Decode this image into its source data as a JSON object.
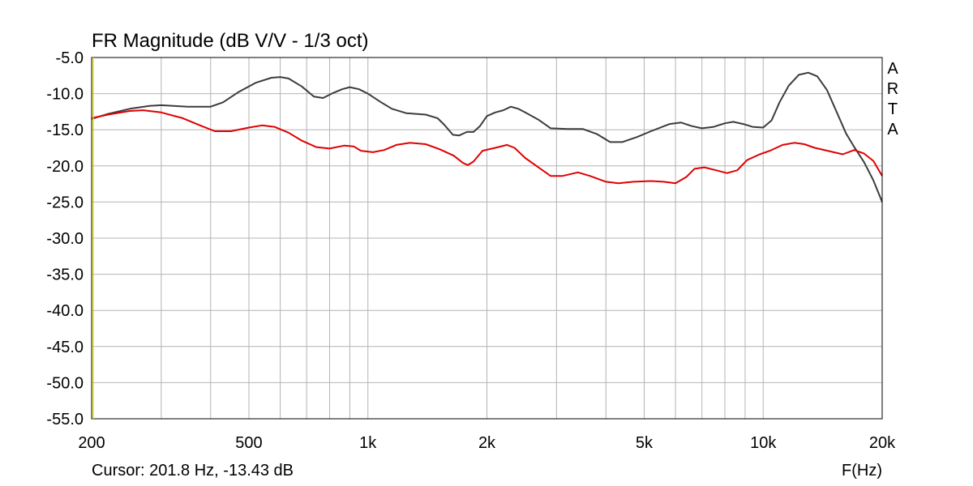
{
  "chart_data": {
    "type": "line",
    "title": "FR Magnitude (dB V/V - 1/3 oct)",
    "xlabel": "F(Hz)",
    "xscale": "log",
    "xlim": [
      200,
      20000
    ],
    "ylim": [
      -55,
      -5
    ],
    "xticks": [
      {
        "value": 200,
        "label": "200"
      },
      {
        "value": 500,
        "label": "500"
      },
      {
        "value": 1000,
        "label": "1k"
      },
      {
        "value": 2000,
        "label": "2k"
      },
      {
        "value": 5000,
        "label": "5k"
      },
      {
        "value": 10000,
        "label": "10k"
      },
      {
        "value": 20000,
        "label": "20k"
      }
    ],
    "yticks": [
      {
        "value": -5,
        "label": "-5.0"
      },
      {
        "value": -10,
        "label": "-10.0"
      },
      {
        "value": -15,
        "label": "-15.0"
      },
      {
        "value": -20,
        "label": "-20.0"
      },
      {
        "value": -25,
        "label": "-25.0"
      },
      {
        "value": -30,
        "label": "-30.0"
      },
      {
        "value": -35,
        "label": "-35.0"
      },
      {
        "value": -40,
        "label": "-40.0"
      },
      {
        "value": -45,
        "label": "-45.0"
      },
      {
        "value": -50,
        "label": "-50.0"
      },
      {
        "value": -55,
        "label": "-55.0"
      }
    ],
    "grid": true,
    "cursor_text": "Cursor: 201.8 Hz, -13.43 dB",
    "cursor_freq": 201.8,
    "side_label": [
      "A",
      "R",
      "T",
      "A"
    ],
    "cursor_color": "#e0e000",
    "grid_color": "#b4b4b4",
    "series": [
      {
        "color": "#3c3c3c",
        "points": [
          [
            200,
            -13.5
          ],
          [
            220,
            -12.8
          ],
          [
            250,
            -12.1
          ],
          [
            280,
            -11.7
          ],
          [
            300,
            -11.6
          ],
          [
            350,
            -11.8
          ],
          [
            400,
            -11.8
          ],
          [
            430,
            -11.2
          ],
          [
            470,
            -9.8
          ],
          [
            520,
            -8.5
          ],
          [
            570,
            -7.8
          ],
          [
            600,
            -7.7
          ],
          [
            630,
            -7.9
          ],
          [
            680,
            -9.0
          ],
          [
            730,
            -10.4
          ],
          [
            770,
            -10.6
          ],
          [
            810,
            -10.0
          ],
          [
            860,
            -9.4
          ],
          [
            900,
            -9.1
          ],
          [
            950,
            -9.4
          ],
          [
            1000,
            -10.0
          ],
          [
            1080,
            -11.2
          ],
          [
            1150,
            -12.1
          ],
          [
            1250,
            -12.7
          ],
          [
            1400,
            -12.9
          ],
          [
            1500,
            -13.4
          ],
          [
            1560,
            -14.3
          ],
          [
            1640,
            -15.7
          ],
          [
            1700,
            -15.8
          ],
          [
            1780,
            -15.3
          ],
          [
            1850,
            -15.3
          ],
          [
            1920,
            -14.5
          ],
          [
            2000,
            -13.1
          ],
          [
            2100,
            -12.6
          ],
          [
            2200,
            -12.3
          ],
          [
            2300,
            -11.8
          ],
          [
            2400,
            -12.1
          ],
          [
            2500,
            -12.6
          ],
          [
            2700,
            -13.6
          ],
          [
            2900,
            -14.8
          ],
          [
            3200,
            -14.9
          ],
          [
            3500,
            -14.9
          ],
          [
            3800,
            -15.6
          ],
          [
            4100,
            -16.7
          ],
          [
            4400,
            -16.7
          ],
          [
            4800,
            -16.0
          ],
          [
            5200,
            -15.2
          ],
          [
            5800,
            -14.2
          ],
          [
            6200,
            -14.0
          ],
          [
            6600,
            -14.5
          ],
          [
            7000,
            -14.8
          ],
          [
            7500,
            -14.6
          ],
          [
            8000,
            -14.1
          ],
          [
            8400,
            -13.9
          ],
          [
            8900,
            -14.2
          ],
          [
            9400,
            -14.6
          ],
          [
            10000,
            -14.7
          ],
          [
            10500,
            -13.7
          ],
          [
            11000,
            -11.2
          ],
          [
            11600,
            -8.9
          ],
          [
            12300,
            -7.4
          ],
          [
            13000,
            -7.1
          ],
          [
            13700,
            -7.6
          ],
          [
            14500,
            -9.5
          ],
          [
            15300,
            -12.4
          ],
          [
            16200,
            -15.5
          ],
          [
            17000,
            -17.4
          ],
          [
            18000,
            -19.5
          ],
          [
            19000,
            -22.0
          ],
          [
            20000,
            -25.0
          ]
        ]
      },
      {
        "color": "#e00000",
        "points": [
          [
            200,
            -13.4
          ],
          [
            220,
            -12.9
          ],
          [
            250,
            -12.4
          ],
          [
            270,
            -12.3
          ],
          [
            300,
            -12.6
          ],
          [
            340,
            -13.4
          ],
          [
            380,
            -14.5
          ],
          [
            410,
            -15.2
          ],
          [
            450,
            -15.2
          ],
          [
            500,
            -14.7
          ],
          [
            540,
            -14.4
          ],
          [
            580,
            -14.6
          ],
          [
            630,
            -15.4
          ],
          [
            680,
            -16.5
          ],
          [
            740,
            -17.4
          ],
          [
            800,
            -17.6
          ],
          [
            870,
            -17.2
          ],
          [
            920,
            -17.3
          ],
          [
            960,
            -17.9
          ],
          [
            1030,
            -18.1
          ],
          [
            1100,
            -17.8
          ],
          [
            1180,
            -17.1
          ],
          [
            1280,
            -16.8
          ],
          [
            1400,
            -17.0
          ],
          [
            1520,
            -17.7
          ],
          [
            1650,
            -18.6
          ],
          [
            1740,
            -19.6
          ],
          [
            1790,
            -19.9
          ],
          [
            1850,
            -19.4
          ],
          [
            1950,
            -17.9
          ],
          [
            2100,
            -17.5
          ],
          [
            2250,
            -17.1
          ],
          [
            2350,
            -17.5
          ],
          [
            2500,
            -18.9
          ],
          [
            2700,
            -20.2
          ],
          [
            2900,
            -21.4
          ],
          [
            3100,
            -21.4
          ],
          [
            3400,
            -20.9
          ],
          [
            3650,
            -21.4
          ],
          [
            4000,
            -22.2
          ],
          [
            4300,
            -22.4
          ],
          [
            4700,
            -22.2
          ],
          [
            5200,
            -22.1
          ],
          [
            5600,
            -22.2
          ],
          [
            6000,
            -22.4
          ],
          [
            6400,
            -21.5
          ],
          [
            6700,
            -20.4
          ],
          [
            7100,
            -20.2
          ],
          [
            7600,
            -20.6
          ],
          [
            8100,
            -21.0
          ],
          [
            8600,
            -20.6
          ],
          [
            9100,
            -19.2
          ],
          [
            9800,
            -18.4
          ],
          [
            10400,
            -17.9
          ],
          [
            11200,
            -17.1
          ],
          [
            12000,
            -16.8
          ],
          [
            12700,
            -17.0
          ],
          [
            13500,
            -17.5
          ],
          [
            14800,
            -18.0
          ],
          [
            15900,
            -18.4
          ],
          [
            17000,
            -17.8
          ],
          [
            18000,
            -18.3
          ],
          [
            19000,
            -19.3
          ],
          [
            20000,
            -21.4
          ]
        ]
      }
    ]
  }
}
